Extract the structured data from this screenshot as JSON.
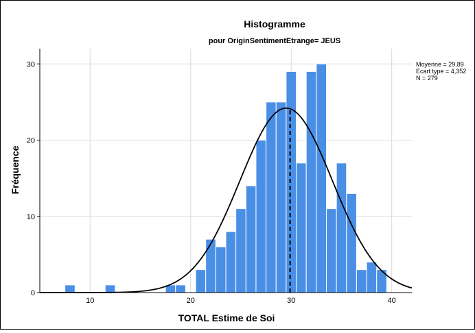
{
  "chart_data": {
    "type": "bar",
    "title": "Histogramme",
    "subtitle": "pour OriginSentimentEtrange= JEUS",
    "xlabel": "TOTAL Estime de Soi",
    "ylabel": "Fréquence",
    "xlim": [
      5,
      42
    ],
    "ylim": [
      0,
      32
    ],
    "xticks": [
      10,
      20,
      30,
      40
    ],
    "yticks": [
      0,
      10,
      20,
      30
    ],
    "bin_width": 1,
    "bins": [
      8,
      12,
      18,
      19,
      21,
      22,
      23,
      24,
      25,
      26,
      27,
      28,
      29,
      30,
      31,
      32,
      33,
      34,
      35,
      36,
      37,
      38,
      39
    ],
    "values": [
      1,
      1,
      1,
      1,
      3,
      7,
      6,
      8,
      11,
      14,
      20,
      25,
      25,
      29,
      17,
      29,
      30,
      11,
      17,
      13,
      3,
      4,
      3
    ],
    "grid": true,
    "bar_color": "#4a8fe6",
    "bar_edge_color": "#ffffff",
    "curve_color": "#000000",
    "mean_line": {
      "x": 29.89,
      "style": "dashed"
    },
    "stats": [
      "Moyenne = 29,89",
      "Ecart type = 4,352",
      "N = 279"
    ],
    "curve_peak": 24.2,
    "curve_mode": 29.5
  }
}
